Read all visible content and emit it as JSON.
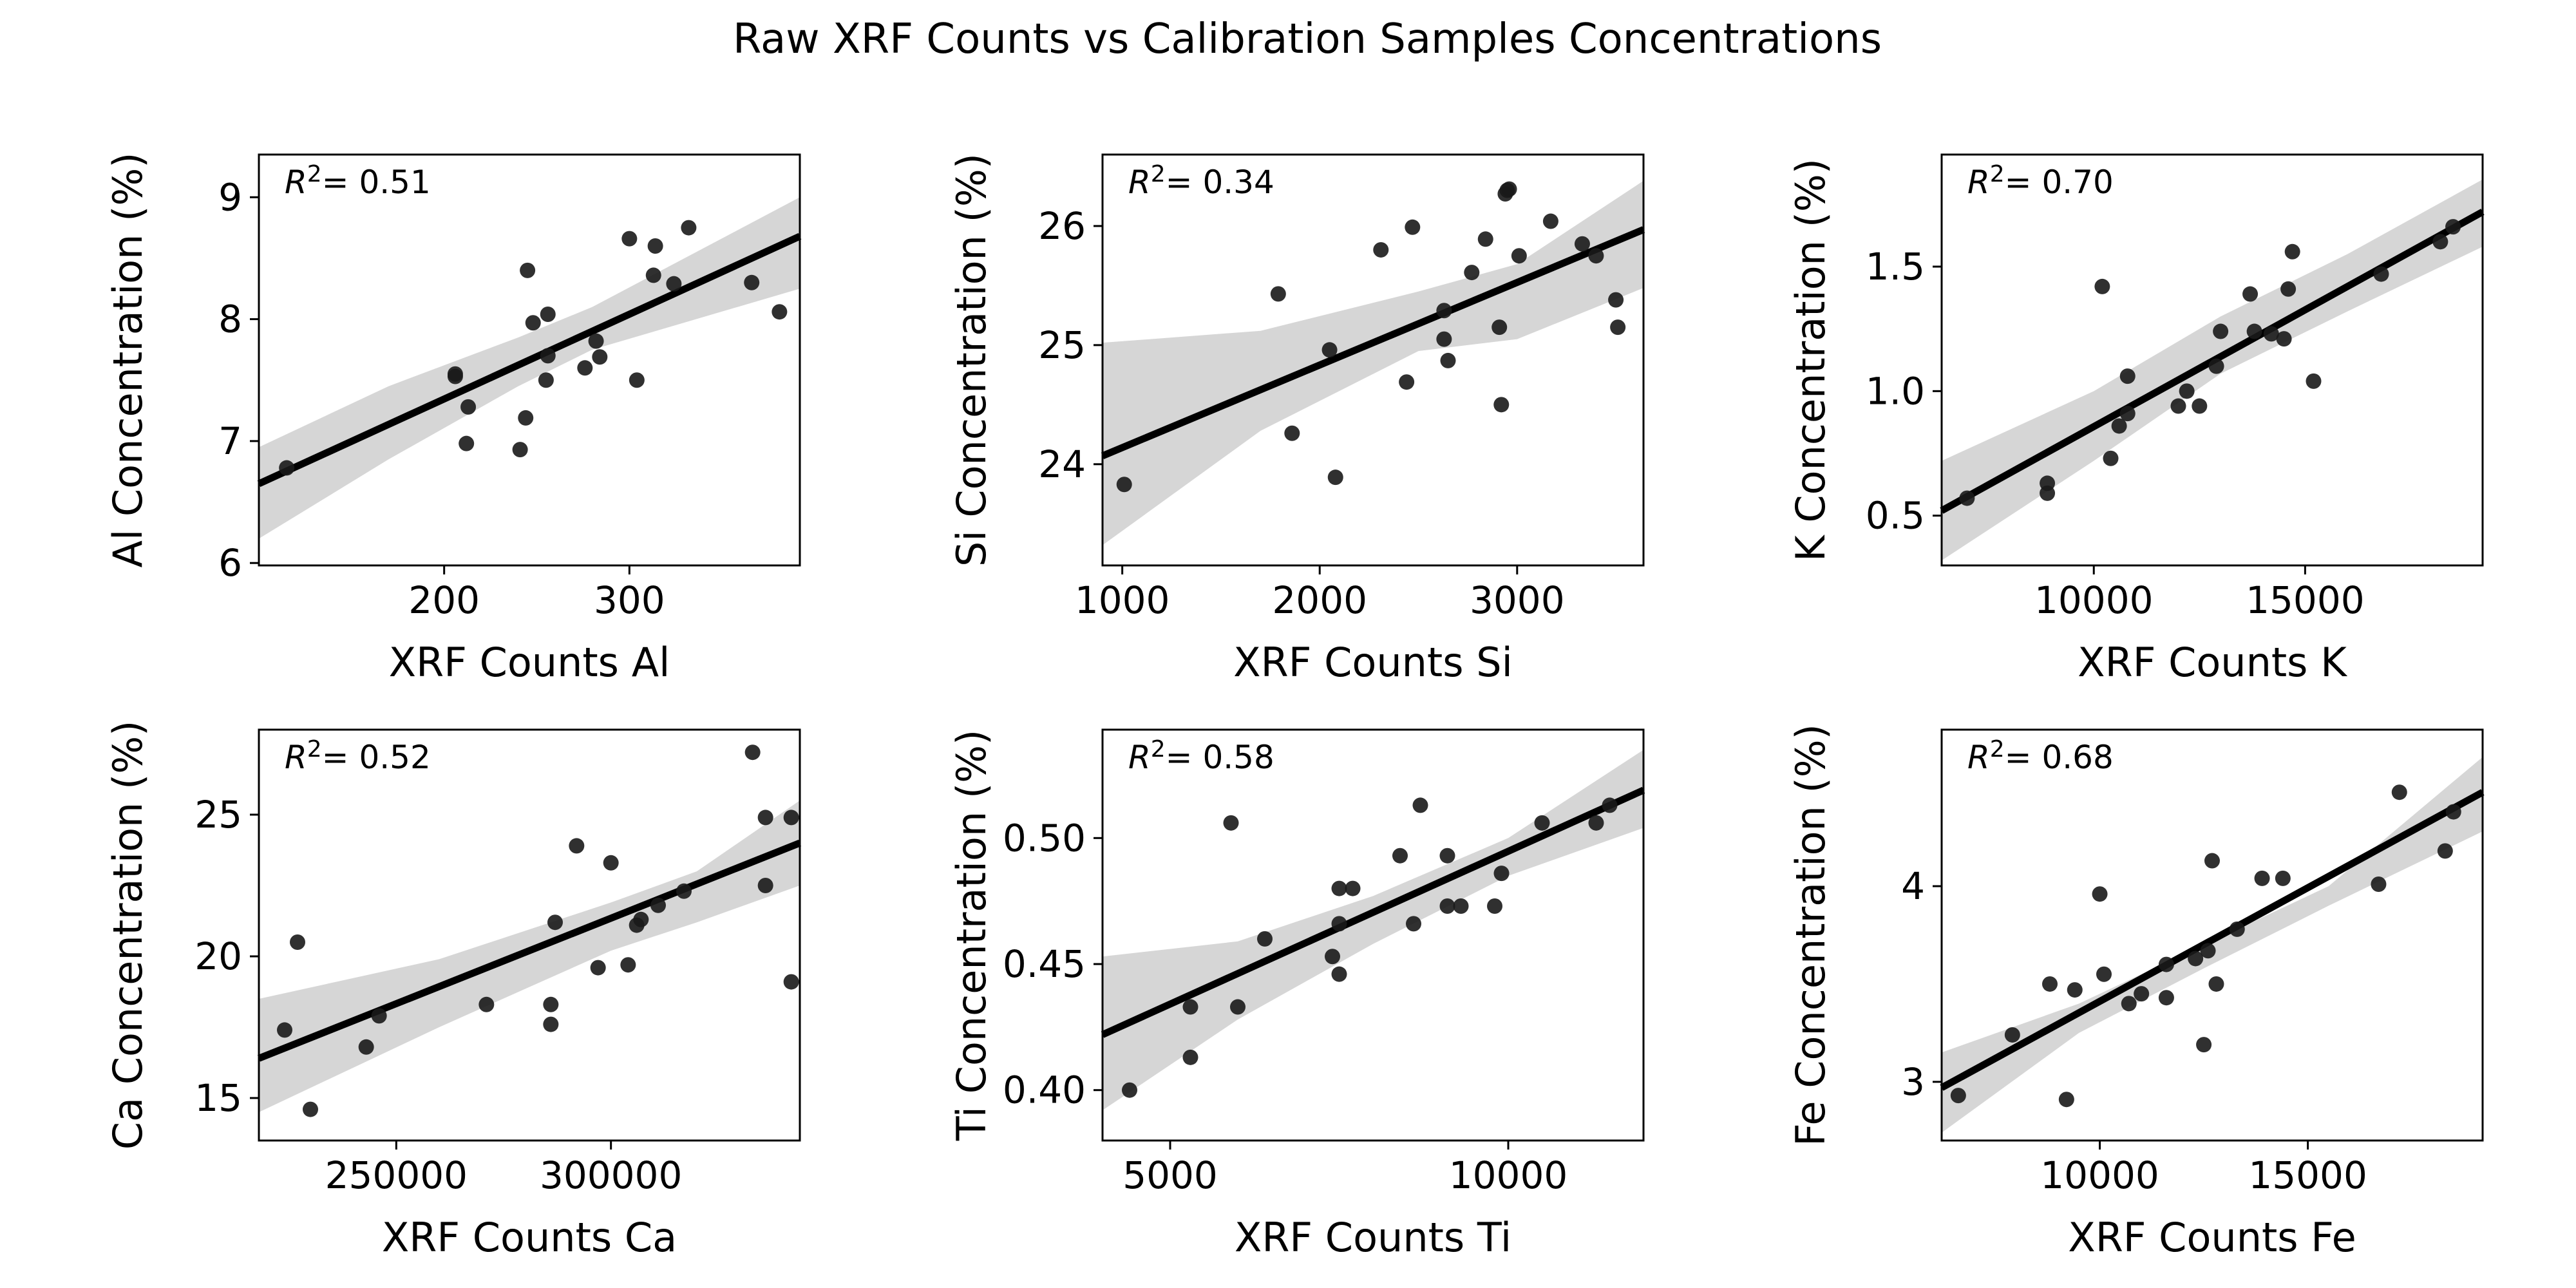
{
  "figure": {
    "title": "Raw XRF Counts vs Calibration Samples Concentrations"
  },
  "chart_data": [
    {
      "type": "scatter",
      "xlabel": "XRF Counts Al",
      "ylabel": "Al Concentration (%)",
      "r2_label": "= 0.51",
      "xlim": [
        100,
        392
      ],
      "ylim": [
        5.98,
        9.35
      ],
      "xticks": [
        200,
        300
      ],
      "yticks": [
        6,
        7,
        8,
        9
      ],
      "fit": {
        "x": [
          100,
          392
        ],
        "y": [
          6.65,
          8.68
        ]
      },
      "band": {
        "x": [
          100,
          170,
          240,
          280,
          392
        ],
        "upper": [
          6.95,
          7.45,
          7.85,
          8.1,
          9.0
        ],
        "lower": [
          6.2,
          6.85,
          7.45,
          7.75,
          8.25
        ]
      },
      "x": [
        115,
        206,
        206,
        212,
        213,
        241,
        244,
        245,
        248,
        255,
        256,
        256,
        276,
        282,
        284,
        300,
        304,
        313,
        314,
        324,
        332,
        366,
        381
      ],
      "y": [
        6.78,
        7.53,
        7.55,
        6.98,
        7.28,
        6.93,
        7.19,
        8.4,
        7.97,
        7.5,
        7.7,
        8.04,
        7.6,
        7.82,
        7.69,
        8.66,
        7.5,
        8.36,
        8.6,
        8.29,
        8.75,
        8.3,
        8.06
      ]
    },
    {
      "type": "scatter",
      "xlabel": "XRF Counts Si",
      "ylabel": "Si Concentration (%)",
      "r2_label": "= 0.34",
      "xlim": [
        900,
        3640
      ],
      "ylim": [
        23.15,
        26.6
      ],
      "xticks": [
        1000,
        2000,
        3000
      ],
      "yticks": [
        24,
        25,
        26
      ],
      "fit": {
        "x": [
          900,
          3640
        ],
        "y": [
          24.07,
          25.97
        ]
      },
      "band": {
        "x": [
          900,
          1700,
          2500,
          3000,
          3640
        ],
        "upper": [
          25.02,
          25.12,
          25.45,
          25.68,
          26.38
        ],
        "lower": [
          23.32,
          24.28,
          24.95,
          25.05,
          25.48
        ]
      },
      "x": [
        1010,
        1790,
        1860,
        2050,
        2080,
        2310,
        2440,
        2470,
        2630,
        2630,
        2650,
        2770,
        2840,
        2910,
        2920,
        2940,
        2950,
        2960,
        3010,
        3170,
        3330,
        3400,
        3500,
        3510
      ],
      "y": [
        23.83,
        25.43,
        24.26,
        24.96,
        23.89,
        25.8,
        24.69,
        25.99,
        25.05,
        25.29,
        24.87,
        25.61,
        25.89,
        25.15,
        24.5,
        26.27,
        26.3,
        26.31,
        25.75,
        26.04,
        25.85,
        25.75,
        25.38,
        25.15
      ]
    },
    {
      "type": "scatter",
      "xlabel": "XRF Counts K",
      "ylabel": "K Concentration (%)",
      "r2_label": "= 0.70",
      "xlim": [
        6400,
        19200
      ],
      "ylim": [
        0.3,
        1.95
      ],
      "xticks": [
        10000,
        15000
      ],
      "yticks": [
        0.5,
        1.0,
        1.5
      ],
      "fit": {
        "x": [
          6400,
          19200
        ],
        "y": [
          0.52,
          1.72
        ]
      },
      "band": {
        "x": [
          6400,
          10000,
          13000,
          16000,
          19200
        ],
        "upper": [
          0.72,
          1.0,
          1.3,
          1.55,
          1.85
        ],
        "lower": [
          0.32,
          0.72,
          1.07,
          1.32,
          1.58
        ]
      },
      "x": [
        7000,
        8900,
        8900,
        10200,
        10400,
        10600,
        10800,
        10800,
        12000,
        12200,
        12500,
        12900,
        13000,
        13700,
        13800,
        14200,
        14500,
        14600,
        14700,
        15200,
        16800,
        18200,
        18500
      ],
      "y": [
        0.57,
        0.63,
        0.59,
        1.42,
        0.73,
        0.86,
        1.06,
        0.91,
        0.94,
        1.0,
        0.94,
        1.1,
        1.24,
        1.39,
        1.24,
        1.23,
        1.21,
        1.41,
        1.56,
        1.04,
        1.47,
        1.6,
        1.66
      ]
    },
    {
      "type": "scatter",
      "xlabel": "XRF Counts Ca",
      "ylabel": "Ca Concentration (%)",
      "r2_label": "= 0.52",
      "xlim": [
        218000,
        344000
      ],
      "ylim": [
        13.5,
        28.0
      ],
      "xticks": [
        250000,
        300000
      ],
      "yticks": [
        15,
        20,
        25
      ],
      "fit": {
        "x": [
          218000,
          344000
        ],
        "y": [
          16.4,
          24.0
        ]
      },
      "band": {
        "x": [
          218000,
          260000,
          300000,
          320000,
          344000
        ],
        "upper": [
          18.5,
          19.9,
          21.9,
          23.0,
          25.5
        ],
        "lower": [
          14.5,
          17.5,
          20.2,
          21.2,
          22.5
        ]
      },
      "x": [
        224000,
        227000,
        230000,
        243000,
        246000,
        271000,
        286000,
        286000,
        287000,
        292000,
        297000,
        300000,
        304000,
        306000,
        307000,
        311000,
        317000,
        333000,
        336000,
        336000,
        342000,
        342000
      ],
      "y": [
        17.4,
        20.5,
        14.6,
        16.8,
        17.9,
        18.3,
        18.3,
        17.6,
        21.2,
        23.9,
        19.6,
        23.3,
        19.7,
        21.1,
        21.3,
        21.8,
        22.3,
        27.2,
        22.5,
        24.9,
        24.9,
        19.1
      ]
    },
    {
      "type": "scatter",
      "xlabel": "XRF Counts Ti",
      "ylabel": "Ti Concentration (%)",
      "r2_label": "= 0.58",
      "xlim": [
        4000,
        12000
      ],
      "ylim": [
        0.38,
        0.543
      ],
      "xticks": [
        5000,
        10000
      ],
      "yticks": [
        0.4,
        0.45,
        0.5
      ],
      "fit": {
        "x": [
          4000,
          12000
        ],
        "y": [
          0.422,
          0.519
        ]
      },
      "band": {
        "x": [
          4000,
          6000,
          8000,
          10000,
          12000
        ],
        "upper": [
          0.453,
          0.459,
          0.477,
          0.5,
          0.535
        ],
        "lower": [
          0.392,
          0.428,
          0.458,
          0.485,
          0.504
        ]
      },
      "x": [
        4400,
        5300,
        5300,
        5900,
        6000,
        6400,
        7400,
        7500,
        7500,
        7500,
        7700,
        8400,
        8600,
        8700,
        9100,
        9100,
        9300,
        9800,
        9900,
        10500,
        11300,
        11500
      ],
      "y": [
        0.4,
        0.413,
        0.433,
        0.506,
        0.433,
        0.46,
        0.453,
        0.466,
        0.446,
        0.48,
        0.48,
        0.493,
        0.466,
        0.513,
        0.493,
        0.473,
        0.473,
        0.473,
        0.486,
        0.506,
        0.506,
        0.513
      ]
    },
    {
      "type": "scatter",
      "xlabel": "XRF Counts Fe",
      "ylabel": "Fe Concentration (%)",
      "r2_label": "= 0.68",
      "xlim": [
        6200,
        19200
      ],
      "ylim": [
        2.7,
        4.8
      ],
      "xticks": [
        10000,
        15000
      ],
      "yticks": [
        3,
        4
      ],
      "fit": {
        "x": [
          6200,
          19200
        ],
        "y": [
          2.97,
          4.48
        ]
      },
      "band": {
        "x": [
          6200,
          9500,
          12500,
          15500,
          19200
        ],
        "upper": [
          3.15,
          3.4,
          3.7,
          4.0,
          4.66
        ],
        "lower": [
          2.74,
          3.25,
          3.58,
          3.9,
          4.28
        ]
      },
      "x": [
        6600,
        7900,
        8800,
        9200,
        9400,
        10000,
        10100,
        10700,
        11000,
        11600,
        11600,
        12300,
        12500,
        12600,
        12700,
        12800,
        13300,
        13900,
        14400,
        16700,
        17200,
        18300,
        18500
      ],
      "y": [
        2.93,
        3.24,
        3.5,
        2.91,
        3.47,
        3.96,
        3.55,
        3.4,
        3.45,
        3.43,
        3.6,
        3.63,
        3.19,
        3.67,
        4.13,
        3.5,
        3.78,
        4.04,
        4.04,
        4.01,
        4.48,
        4.18,
        4.38
      ]
    }
  ]
}
